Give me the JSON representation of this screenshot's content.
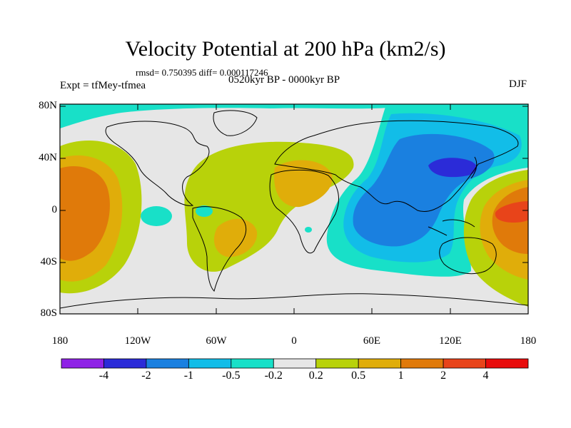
{
  "title": "Velocity Potential at 200 hPa (km2/s)",
  "stats": "rmsd= 0.750395 diff= 0.000117246",
  "experiment": "Expt = tfMey-tfmea",
  "period": "0520kyr BP - 0000kyr BP",
  "season": "DJF",
  "latitude_labels": [
    "80N",
    "40N",
    "0",
    "40S",
    "80S"
  ],
  "longitude_labels": [
    "180",
    "120W",
    "60W",
    "0",
    "60E",
    "120E",
    "180"
  ],
  "colorbar": {
    "labels": [
      "-4",
      "-2",
      "-1",
      "-0.5",
      "-0.2",
      "0.2",
      "0.5",
      "1",
      "2",
      "4"
    ],
    "colors": [
      "#8f22e6",
      "#2b2bd8",
      "#1a80e0",
      "#12bde8",
      "#18e0c8",
      "#e6e6e6",
      "#b8d20a",
      "#e0ad0a",
      "#e07a0a",
      "#e8441a",
      "#e80c0c"
    ]
  }
}
